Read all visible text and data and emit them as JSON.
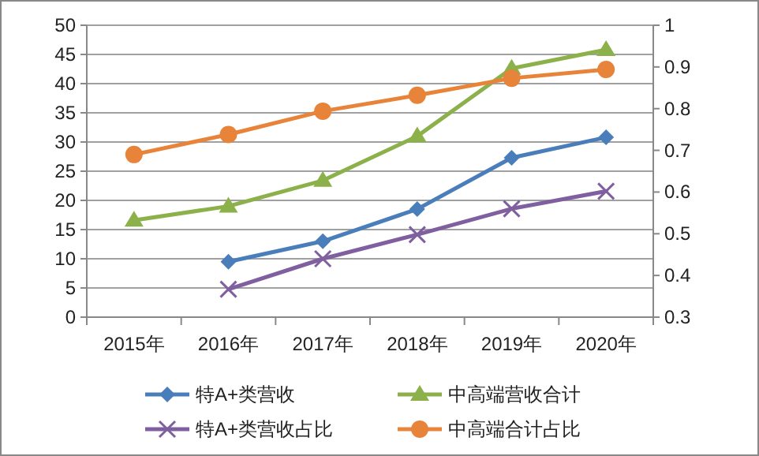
{
  "chart_data": {
    "type": "line",
    "categories": [
      "2015年",
      "2016年",
      "2017年",
      "2018年",
      "2019年",
      "2020年"
    ],
    "series": [
      {
        "name": "特A+类营收",
        "color": "#4a7ebb",
        "marker": "diamond",
        "values": [
          null,
          9.5,
          13.0,
          18.5,
          27.3,
          30.8
        ]
      },
      {
        "name": "中高端营收合计",
        "color": "#8cb04a",
        "marker": "triangle",
        "values": [
          16.6,
          19.0,
          23.4,
          31.0,
          42.6,
          45.8
        ]
      },
      {
        "name": "特A+类营收占比",
        "color": "#7f5f9f",
        "marker": "cross",
        "axis": "y2",
        "values": [
          null,
          0.367,
          0.44,
          0.498,
          0.56,
          0.602
        ]
      },
      {
        "name": "中高端合计占比",
        "color": "#e8833a",
        "marker": "circle",
        "axis": "y2",
        "values": [
          0.69,
          0.738,
          0.794,
          0.832,
          0.873,
          0.894
        ]
      }
    ],
    "ylim": [
      0,
      50
    ],
    "yticks": [
      0,
      5,
      10,
      15,
      20,
      25,
      30,
      35,
      40,
      45,
      50
    ],
    "y2lim": [
      0.3,
      1
    ],
    "y2ticks": [
      0.3,
      0.4,
      0.5,
      0.6,
      0.7,
      0.8,
      0.9,
      1
    ],
    "grid": "y",
    "legend": "bottom",
    "line_style": "solid"
  }
}
